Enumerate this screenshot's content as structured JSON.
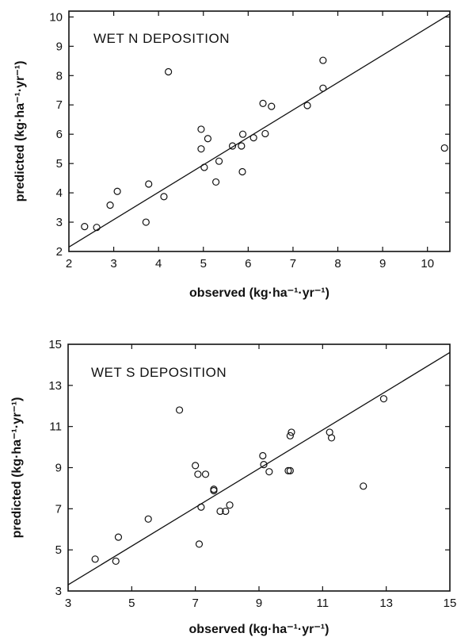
{
  "chart_data": [
    {
      "type": "scatter",
      "title": "WET N DEPOSITION",
      "xlabel": "observed  (kg·ha⁻¹·yr⁻¹)",
      "ylabel": "predicted  (kg·ha⁻¹·yr⁻¹)",
      "xlim": [
        2,
        10.5
      ],
      "ylim": [
        2,
        10.2
      ],
      "xticks": [
        "2",
        "3",
        "4",
        "5",
        "6",
        "7",
        "8",
        "9",
        "10"
      ],
      "yticks": [
        "2",
        "3",
        "4",
        "5",
        "6",
        "7",
        "8",
        "9",
        "10"
      ],
      "grid": false,
      "fit_line": [
        [
          2,
          2.15
        ],
        [
          10.5,
          10.1
        ]
      ],
      "points": [
        {
          "x": 2.35,
          "y": 2.85
        },
        {
          "x": 2.62,
          "y": 2.82
        },
        {
          "x": 2.92,
          "y": 3.58
        },
        {
          "x": 3.08,
          "y": 4.05
        },
        {
          "x": 3.72,
          "y": 3.0
        },
        {
          "x": 3.78,
          "y": 4.3
        },
        {
          "x": 4.12,
          "y": 3.87
        },
        {
          "x": 4.22,
          "y": 8.13
        },
        {
          "x": 4.95,
          "y": 6.17
        },
        {
          "x": 4.95,
          "y": 5.5
        },
        {
          "x": 5.02,
          "y": 4.87
        },
        {
          "x": 5.1,
          "y": 5.85
        },
        {
          "x": 5.28,
          "y": 4.37
        },
        {
          "x": 5.35,
          "y": 5.08
        },
        {
          "x": 5.65,
          "y": 5.6
        },
        {
          "x": 5.85,
          "y": 5.6
        },
        {
          "x": 5.88,
          "y": 6.0
        },
        {
          "x": 5.87,
          "y": 4.72
        },
        {
          "x": 6.12,
          "y": 5.88
        },
        {
          "x": 6.33,
          "y": 7.05
        },
        {
          "x": 6.38,
          "y": 6.02
        },
        {
          "x": 6.52,
          "y": 6.95
        },
        {
          "x": 7.32,
          "y": 6.98
        },
        {
          "x": 7.67,
          "y": 7.57
        },
        {
          "x": 7.67,
          "y": 8.52
        },
        {
          "x": 10.38,
          "y": 5.53
        }
      ]
    },
    {
      "type": "scatter",
      "title": "WET S DEPOSITION",
      "xlabel": "observed  (kg·ha⁻¹·yr⁻¹)",
      "ylabel": "predicted  (kg·ha⁻¹·yr⁻¹)",
      "xlim": [
        3,
        15
      ],
      "ylim": [
        3,
        15
      ],
      "xticks": [
        "3",
        "5",
        "7",
        "9",
        "11",
        "13",
        "15"
      ],
      "yticks": [
        "3",
        "5",
        "7",
        "9",
        "11",
        "13",
        "15"
      ],
      "grid": false,
      "fit_line": [
        [
          3,
          3.3
        ],
        [
          15,
          14.6
        ]
      ],
      "points": [
        {
          "x": 3.85,
          "y": 4.55
        },
        {
          "x": 4.5,
          "y": 4.45
        },
        {
          "x": 4.58,
          "y": 5.62
        },
        {
          "x": 5.52,
          "y": 6.5
        },
        {
          "x": 6.5,
          "y": 11.8
        },
        {
          "x": 7.0,
          "y": 9.1
        },
        {
          "x": 7.08,
          "y": 8.68
        },
        {
          "x": 7.12,
          "y": 5.28
        },
        {
          "x": 7.18,
          "y": 7.08
        },
        {
          "x": 7.32,
          "y": 8.68
        },
        {
          "x": 7.58,
          "y": 7.88
        },
        {
          "x": 7.58,
          "y": 7.95
        },
        {
          "x": 7.78,
          "y": 6.88
        },
        {
          "x": 7.95,
          "y": 6.88
        },
        {
          "x": 8.08,
          "y": 7.18
        },
        {
          "x": 9.12,
          "y": 9.58
        },
        {
          "x": 9.15,
          "y": 9.15
        },
        {
          "x": 9.32,
          "y": 8.8
        },
        {
          "x": 9.92,
          "y": 8.85
        },
        {
          "x": 9.98,
          "y": 8.85
        },
        {
          "x": 9.98,
          "y": 10.55
        },
        {
          "x": 10.02,
          "y": 10.72
        },
        {
          "x": 11.22,
          "y": 10.72
        },
        {
          "x": 11.28,
          "y": 10.45
        },
        {
          "x": 12.28,
          "y": 8.1
        },
        {
          "x": 12.92,
          "y": 12.35
        }
      ]
    }
  ]
}
